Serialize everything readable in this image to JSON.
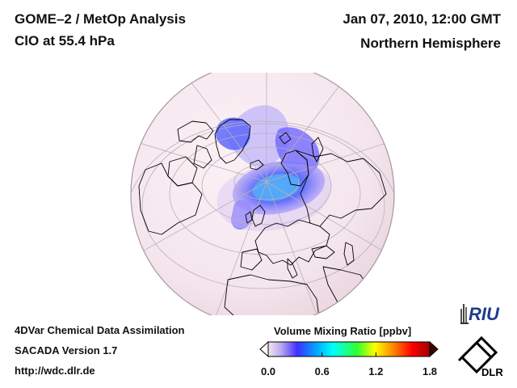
{
  "header": {
    "product": "GOME–2 / MetOp Analysis",
    "species": "ClO at 55.4 hPa",
    "datetime": "Jan 07, 2010, 12:00 GMT",
    "region": "Northern Hemisphere"
  },
  "footer": {
    "system": "4DVar Chemical Data Assimilation",
    "version": "SACADA Version 1.7",
    "url": "http://wdc.dlr.de"
  },
  "colorbar": {
    "title": "Volume Mixing Ratio [ppbv]",
    "range": [
      0.0,
      1.8
    ],
    "ticks": [
      "0.0",
      "0.6",
      "1.2",
      "1.8"
    ],
    "tick_values": [
      0.0,
      0.6,
      1.2,
      1.8
    ],
    "colors": [
      "#f4e4ee",
      "#b8a8f0",
      "#4030ff",
      "#00a8ff",
      "#00ffff",
      "#30ff30",
      "#ffff00",
      "#ff8000",
      "#ff0000",
      "#a00000"
    ]
  },
  "logos": {
    "riu": "RIU",
    "dlr": "DLR"
  },
  "map": {
    "projection": "orthographic",
    "hemisphere": "Northern Hemisphere",
    "background_color": "#f6e9f0",
    "grid_color": "#b9b0b6",
    "coastline_color": "#000000",
    "vortex_colors": [
      "#2f46ff",
      "#0a9dff",
      "#9f86ff"
    ]
  }
}
